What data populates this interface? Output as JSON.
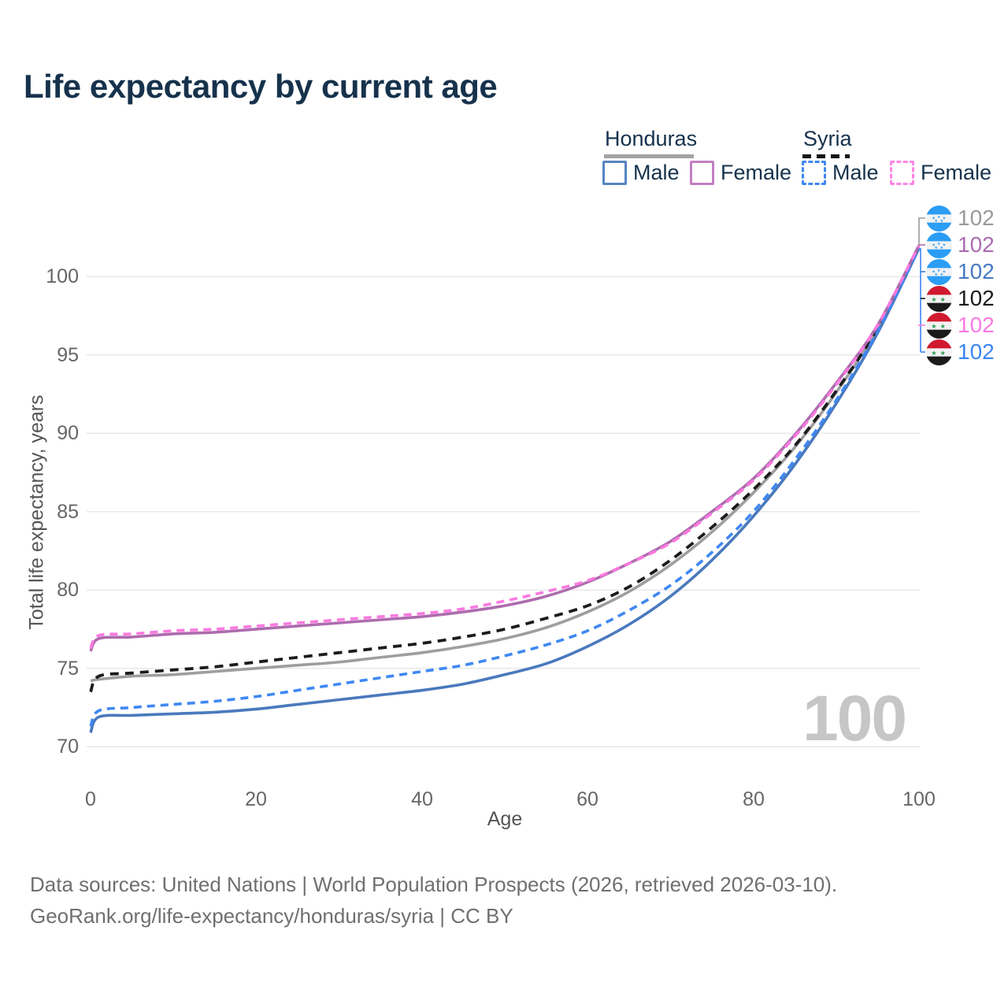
{
  "title": "Life expectancy by current age",
  "watermark": "100",
  "legend": {
    "honduras_label": "Honduras",
    "syria_label": "Syria",
    "male_label": "Male",
    "female_label": "Female"
  },
  "axes": {
    "y_title": "Total life expectancy, years",
    "x_title": "Age",
    "y_ticks": [
      "100",
      "95",
      "90",
      "85",
      "80",
      "75",
      "70"
    ],
    "x_ticks": [
      "0",
      "20",
      "40",
      "60",
      "80",
      "100"
    ]
  },
  "end_labels": [
    {
      "flag": "honduras",
      "series": "Honduras Total",
      "value": "102",
      "color": "#9a9a9a"
    },
    {
      "flag": "honduras",
      "series": "Honduras Female",
      "value": "102",
      "color": "#ab6cb0"
    },
    {
      "flag": "honduras",
      "series": "Honduras Male",
      "value": "102",
      "color": "#4779c4"
    },
    {
      "flag": "syria",
      "series": "Syria Total",
      "value": "102",
      "color": "#1a1a1a"
    },
    {
      "flag": "syria",
      "series": "Syria Female",
      "value": "102",
      "color": "#f97ae2"
    },
    {
      "flag": "syria",
      "series": "Syria Male",
      "value": "102",
      "color": "#3c86f0"
    }
  ],
  "footer": {
    "line1": "Data sources: United Nations | World Population Prospects (2026, retrieved 2026-03-10).",
    "line2": "GeoRank.org/life-expectancy/honduras/syria | CC BY"
  },
  "chart_data": {
    "type": "line",
    "title": "Life expectancy by current age",
    "xlabel": "Age",
    "ylabel": "Total life expectancy, years",
    "xlim": [
      0,
      100
    ],
    "ylim": [
      70,
      102
    ],
    "x_ticks": [
      0,
      20,
      40,
      60,
      80,
      100
    ],
    "y_gridlines": [
      70,
      75,
      80,
      85,
      90,
      95,
      100
    ],
    "grid": "horizontal-only",
    "legend_position": "top-right",
    "x": [
      0,
      1,
      5,
      10,
      15,
      20,
      25,
      30,
      35,
      40,
      45,
      50,
      55,
      60,
      65,
      70,
      75,
      80,
      85,
      90,
      95,
      100
    ],
    "series": [
      {
        "name": "Honduras Total",
        "country": "Honduras",
        "sex": "total",
        "line": "solid",
        "color": "#9e9e9e",
        "width": 3.6,
        "dash": "none",
        "values": [
          74.2,
          74.3,
          74.5,
          74.6,
          74.8,
          75.0,
          75.2,
          75.4,
          75.7,
          76.0,
          76.4,
          76.9,
          77.6,
          78.6,
          79.9,
          81.6,
          83.7,
          86.2,
          89.1,
          92.6,
          96.7,
          101.9
        ]
      },
      {
        "name": "Syria Total",
        "country": "Syria",
        "sex": "total",
        "line": "dashed",
        "color": "#1c1c1c",
        "width": 3.8,
        "dash": "11 8",
        "values": [
          73.5,
          74.5,
          74.7,
          74.9,
          75.1,
          75.4,
          75.7,
          76.0,
          76.3,
          76.6,
          77.0,
          77.5,
          78.2,
          79.0,
          80.2,
          81.9,
          84.0,
          86.4,
          89.2,
          92.7,
          96.7,
          101.9
        ]
      },
      {
        "name": "Honduras Male",
        "country": "Honduras",
        "sex": "male",
        "line": "solid",
        "color": "#4a79bd",
        "width": 3.6,
        "dash": "none",
        "values": [
          70.9,
          71.9,
          72.0,
          72.1,
          72.2,
          72.4,
          72.7,
          73.0,
          73.3,
          73.6,
          74.0,
          74.6,
          75.3,
          76.4,
          77.8,
          79.6,
          81.9,
          84.7,
          88.0,
          91.9,
          96.4,
          101.8
        ]
      },
      {
        "name": "Syria Male",
        "country": "Syria",
        "sex": "male",
        "line": "dashed",
        "color": "#3f88f2",
        "width": 3.6,
        "dash": "10 7",
        "values": [
          71.3,
          72.3,
          72.5,
          72.7,
          72.9,
          73.2,
          73.6,
          74.0,
          74.4,
          74.8,
          75.2,
          75.8,
          76.5,
          77.4,
          78.7,
          80.3,
          82.4,
          85.0,
          88.3,
          92.1,
          96.5,
          101.8
        ]
      },
      {
        "name": "Honduras Female",
        "country": "Honduras",
        "sex": "female",
        "line": "solid",
        "color": "#ad6cae",
        "width": 3.6,
        "dash": "none",
        "values": [
          76.1,
          76.9,
          77.0,
          77.2,
          77.3,
          77.5,
          77.7,
          77.9,
          78.1,
          78.3,
          78.6,
          79.0,
          79.6,
          80.5,
          81.7,
          83.1,
          85.0,
          87.1,
          89.9,
          93.2,
          96.9,
          102.0
        ]
      },
      {
        "name": "Syria Female",
        "country": "Syria",
        "sex": "female",
        "line": "dashed",
        "color": "#fa79df",
        "width": 3.6,
        "dash": "10 7",
        "values": [
          76.3,
          77.1,
          77.2,
          77.4,
          77.5,
          77.7,
          77.9,
          78.1,
          78.3,
          78.5,
          78.8,
          79.3,
          79.9,
          80.6,
          81.7,
          83.0,
          84.9,
          87.0,
          89.8,
          93.1,
          96.9,
          102.0
        ]
      }
    ],
    "end_value_labels": [
      102,
      102,
      102,
      102,
      102,
      102
    ]
  }
}
